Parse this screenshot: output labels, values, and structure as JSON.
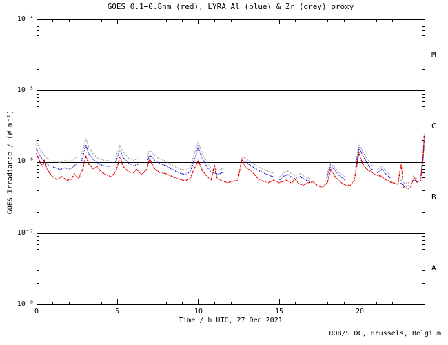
{
  "credit": "ROB/SIDC, Brussels, Belgium",
  "colors": {
    "background": "#ffffff",
    "axis": "#000000",
    "goes_red": "#dd0000",
    "lyra_al_blue": "#2222cc",
    "lyra_zr_grey": "#9f9f9f"
  },
  "chart_data": {
    "type": "scatter",
    "title": "GOES 0.1−0.8nm (red), LYRA Al (blue) & Zr (grey) proxy",
    "xlabel": "Time / h UTC, 27 Dec 2021",
    "ylabel": "GOES Irradiance / (W m⁻²)",
    "xlim": [
      0,
      24
    ],
    "ylim": [
      1e-08,
      0.0001
    ],
    "yscale": "log",
    "grid": false,
    "hlines": [
      1e-05,
      1e-06,
      1e-07
    ],
    "x_major_ticks": [
      0,
      5,
      10,
      15,
      20
    ],
    "x_minor_step": 1,
    "x_tick_labels": [
      "0",
      "5",
      "10",
      "15",
      "20"
    ],
    "y_tick_labels": [
      "10⁻⁴",
      "10⁻⁵",
      "10⁻⁶",
      "10⁻⁷",
      "10⁻⁸"
    ],
    "right_axis_class_labels": [
      "M",
      "C",
      "B",
      "A"
    ],
    "value_scale": 1e-06,
    "value_unit": "W m⁻² (series values are in units of 10⁻⁶ W m⁻²)",
    "series": [
      {
        "id": "lyra-zr",
        "name": "LYRA Zr proxy",
        "color": "#9f9f9f",
        "dot_spacing": 2.6,
        "segments": [
          [
            [
              0.0,
              1.9
            ],
            [
              0.25,
              1.45
            ],
            [
              0.5,
              1.22
            ],
            [
              0.72,
              1.08
            ]
          ],
          [
            [
              1.05,
              1.03
            ],
            [
              1.45,
              0.98
            ],
            [
              1.75,
              1.05
            ],
            [
              2.05,
              1.0
            ],
            [
              2.3,
              1.06
            ],
            [
              2.45,
              1.15
            ]
          ],
          [
            [
              2.8,
              1.3
            ],
            [
              3.05,
              2.1
            ],
            [
              3.25,
              1.55
            ],
            [
              3.5,
              1.3
            ],
            [
              3.8,
              1.12
            ],
            [
              4.15,
              1.05
            ],
            [
              4.55,
              1.02
            ]
          ],
          [
            [
              4.9,
              1.18
            ],
            [
              5.15,
              1.7
            ],
            [
              5.4,
              1.35
            ],
            [
              5.7,
              1.12
            ],
            [
              6.0,
              1.05
            ],
            [
              6.25,
              1.1
            ]
          ],
          [
            [
              6.85,
              1.18
            ],
            [
              7.0,
              1.45
            ],
            [
              7.3,
              1.22
            ],
            [
              7.6,
              1.1
            ],
            [
              8.0,
              1.02
            ],
            [
              8.4,
              0.9
            ],
            [
              8.8,
              0.8
            ],
            [
              9.2,
              0.76
            ],
            [
              9.5,
              0.84
            ],
            [
              9.75,
              1.25
            ],
            [
              10.0,
              1.9
            ],
            [
              10.25,
              1.3
            ],
            [
              10.55,
              0.98
            ],
            [
              10.75,
              0.84
            ]
          ],
          [
            [
              10.95,
              0.8
            ],
            [
              11.25,
              0.76
            ],
            [
              11.55,
              0.81
            ]
          ],
          [
            [
              12.75,
              1.18
            ],
            [
              13.05,
              1.06
            ],
            [
              13.4,
              0.94
            ],
            [
              13.8,
              0.83
            ],
            [
              14.2,
              0.75
            ],
            [
              14.6,
              0.7
            ]
          ],
          [
            [
              15.05,
              0.62
            ],
            [
              15.3,
              0.7
            ],
            [
              15.55,
              0.74
            ],
            [
              15.8,
              0.67
            ]
          ],
          [
            [
              15.95,
              0.64
            ],
            [
              16.3,
              0.68
            ],
            [
              16.6,
              0.62
            ],
            [
              16.9,
              0.58
            ]
          ],
          [
            [
              17.95,
              0.66
            ],
            [
              18.2,
              0.96
            ],
            [
              18.5,
              0.81
            ],
            [
              18.8,
              0.68
            ],
            [
              19.05,
              0.62
            ]
          ],
          [
            [
              19.75,
              1.0
            ],
            [
              19.95,
              1.78
            ],
            [
              20.15,
              1.42
            ],
            [
              20.4,
              1.15
            ],
            [
              20.6,
              0.98
            ],
            [
              20.75,
              0.9
            ]
          ],
          [
            [
              21.1,
              0.78
            ],
            [
              21.35,
              0.86
            ],
            [
              21.6,
              0.75
            ],
            [
              21.85,
              0.66
            ]
          ],
          [
            [
              22.55,
              0.55
            ],
            [
              22.75,
              0.5
            ],
            [
              23.0,
              0.51
            ]
          ],
          [
            [
              23.3,
              0.63
            ],
            [
              23.5,
              0.58
            ]
          ],
          [
            [
              23.8,
              0.75
            ],
            [
              23.92,
              1.4
            ],
            [
              23.98,
              2.1
            ]
          ]
        ]
      },
      {
        "id": "lyra-al",
        "name": "LYRA Al proxy",
        "color": "#2222cc",
        "dot_spacing": 2.6,
        "segments": [
          [
            [
              0.0,
              1.5
            ],
            [
              0.25,
              1.18
            ],
            [
              0.5,
              1.0
            ],
            [
              0.72,
              0.9
            ]
          ],
          [
            [
              1.05,
              0.84
            ],
            [
              1.45,
              0.78
            ],
            [
              1.75,
              0.82
            ],
            [
              2.05,
              0.79
            ],
            [
              2.3,
              0.86
            ],
            [
              2.45,
              0.93
            ]
          ],
          [
            [
              2.8,
              1.05
            ],
            [
              3.05,
              1.7
            ],
            [
              3.25,
              1.28
            ],
            [
              3.5,
              1.08
            ],
            [
              3.8,
              0.95
            ],
            [
              4.15,
              0.88
            ],
            [
              4.55,
              0.86
            ]
          ],
          [
            [
              4.9,
              1.0
            ],
            [
              5.15,
              1.45
            ],
            [
              5.4,
              1.12
            ],
            [
              5.7,
              0.95
            ],
            [
              6.0,
              0.88
            ],
            [
              6.25,
              0.92
            ]
          ],
          [
            [
              6.85,
              1.02
            ],
            [
              7.0,
              1.25
            ],
            [
              7.3,
              1.05
            ],
            [
              7.6,
              0.95
            ],
            [
              8.0,
              0.88
            ],
            [
              8.4,
              0.78
            ],
            [
              8.8,
              0.7
            ],
            [
              9.2,
              0.66
            ],
            [
              9.5,
              0.72
            ],
            [
              9.75,
              1.05
            ],
            [
              10.0,
              1.6
            ],
            [
              10.25,
              1.1
            ],
            [
              10.55,
              0.85
            ],
            [
              10.75,
              0.73
            ]
          ],
          [
            [
              10.95,
              0.7
            ],
            [
              11.25,
              0.67
            ],
            [
              11.55,
              0.71
            ]
          ],
          [
            [
              12.75,
              1.05
            ],
            [
              13.05,
              0.95
            ],
            [
              13.4,
              0.84
            ],
            [
              13.8,
              0.74
            ],
            [
              14.2,
              0.67
            ],
            [
              14.6,
              0.62
            ]
          ],
          [
            [
              15.05,
              0.56
            ],
            [
              15.3,
              0.63
            ],
            [
              15.55,
              0.66
            ],
            [
              15.8,
              0.6
            ]
          ],
          [
            [
              15.95,
              0.58
            ],
            [
              16.3,
              0.62
            ],
            [
              16.6,
              0.56
            ],
            [
              16.9,
              0.53
            ]
          ],
          [
            [
              17.95,
              0.6
            ],
            [
              18.2,
              0.88
            ],
            [
              18.5,
              0.74
            ],
            [
              18.8,
              0.62
            ],
            [
              19.05,
              0.56
            ]
          ],
          [
            [
              19.75,
              0.85
            ],
            [
              19.95,
              1.58
            ],
            [
              20.15,
              1.25
            ],
            [
              20.4,
              1.0
            ],
            [
              20.6,
              0.85
            ],
            [
              20.75,
              0.78
            ]
          ],
          [
            [
              21.1,
              0.7
            ],
            [
              21.35,
              0.78
            ],
            [
              21.6,
              0.68
            ],
            [
              21.85,
              0.6
            ]
          ],
          [
            [
              22.55,
              0.5
            ],
            [
              22.75,
              0.45
            ],
            [
              23.0,
              0.46
            ]
          ],
          [
            [
              23.3,
              0.57
            ],
            [
              23.5,
              0.52
            ]
          ],
          [
            [
              23.8,
              0.68
            ],
            [
              23.92,
              1.2
            ],
            [
              23.98,
              1.9
            ]
          ]
        ]
      },
      {
        "id": "goes-xrs",
        "name": "GOES 0.1−0.8nm",
        "color": "#dd0000",
        "dot_spacing": 2.2,
        "segments": [
          [
            [
              0.0,
              1.3
            ],
            [
              0.2,
              1.0
            ],
            [
              0.38,
              0.87
            ],
            [
              0.5,
              1.05
            ],
            [
              0.62,
              0.82
            ],
            [
              0.8,
              0.7
            ],
            [
              1.0,
              0.62
            ],
            [
              1.25,
              0.56
            ],
            [
              1.55,
              0.62
            ],
            [
              1.9,
              0.55
            ],
            [
              2.15,
              0.57
            ],
            [
              2.35,
              0.68
            ],
            [
              2.6,
              0.58
            ],
            [
              2.85,
              0.78
            ],
            [
              3.05,
              1.2
            ],
            [
              3.25,
              0.92
            ],
            [
              3.5,
              0.8
            ],
            [
              3.75,
              0.85
            ],
            [
              4.0,
              0.72
            ],
            [
              4.3,
              0.66
            ],
            [
              4.6,
              0.62
            ],
            [
              4.9,
              0.72
            ],
            [
              5.15,
              1.15
            ],
            [
              5.4,
              0.84
            ],
            [
              5.7,
              0.72
            ],
            [
              6.0,
              0.7
            ],
            [
              6.2,
              0.78
            ],
            [
              6.5,
              0.66
            ],
            [
              6.8,
              0.78
            ],
            [
              7.0,
              1.1
            ],
            [
              7.3,
              0.8
            ],
            [
              7.6,
              0.71
            ],
            [
              8.0,
              0.68
            ],
            [
              8.4,
              0.62
            ],
            [
              8.8,
              0.57
            ],
            [
              9.2,
              0.54
            ],
            [
              9.5,
              0.58
            ],
            [
              9.75,
              0.8
            ],
            [
              10.0,
              1.05
            ],
            [
              10.25,
              0.75
            ],
            [
              10.55,
              0.62
            ],
            [
              10.8,
              0.56
            ],
            [
              11.0,
              0.9
            ],
            [
              11.15,
              0.6
            ],
            [
              11.45,
              0.54
            ],
            [
              11.8,
              0.51
            ],
            [
              12.1,
              0.53
            ],
            [
              12.45,
              0.55
            ],
            [
              12.7,
              1.1
            ],
            [
              12.95,
              0.82
            ],
            [
              13.3,
              0.74
            ],
            [
              13.7,
              0.58
            ],
            [
              14.05,
              0.53
            ],
            [
              14.35,
              0.51
            ],
            [
              14.65,
              0.55
            ],
            [
              15.0,
              0.51
            ],
            [
              15.45,
              0.55
            ],
            [
              15.8,
              0.5
            ],
            [
              15.95,
              0.58
            ],
            [
              16.2,
              0.5
            ],
            [
              16.5,
              0.47
            ],
            [
              16.8,
              0.51
            ],
            [
              17.1,
              0.52
            ],
            [
              17.4,
              0.46
            ],
            [
              17.7,
              0.44
            ],
            [
              18.0,
              0.52
            ],
            [
              18.2,
              0.78
            ],
            [
              18.5,
              0.6
            ],
            [
              18.8,
              0.52
            ],
            [
              19.1,
              0.47
            ],
            [
              19.4,
              0.47
            ],
            [
              19.65,
              0.55
            ],
            [
              19.85,
              1.0
            ],
            [
              19.95,
              1.35
            ],
            [
              20.15,
              0.95
            ],
            [
              20.4,
              0.8
            ],
            [
              20.7,
              0.72
            ],
            [
              21.0,
              0.65
            ],
            [
              21.3,
              0.63
            ],
            [
              21.6,
              0.56
            ],
            [
              21.9,
              0.52
            ],
            [
              22.15,
              0.5
            ],
            [
              22.35,
              0.48
            ],
            [
              22.55,
              0.93
            ],
            [
              22.7,
              0.44
            ],
            [
              22.9,
              0.42
            ],
            [
              23.1,
              0.43
            ],
            [
              23.35,
              0.6
            ],
            [
              23.55,
              0.52
            ],
            [
              23.75,
              0.55
            ],
            [
              23.9,
              1.1
            ],
            [
              23.98,
              2.4
            ]
          ]
        ]
      }
    ]
  }
}
